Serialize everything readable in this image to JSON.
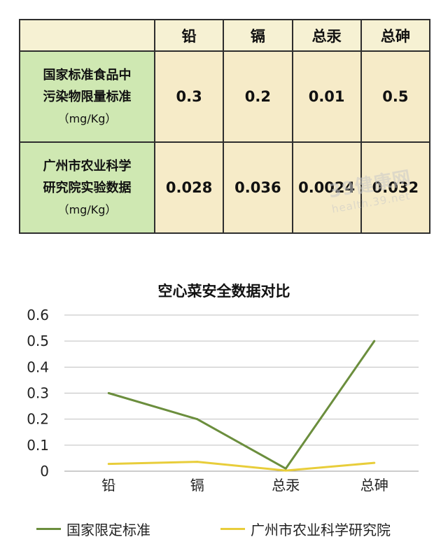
{
  "table": {
    "columns": [
      "铅",
      "镉",
      "总汞",
      "总砷"
    ],
    "rows": [
      {
        "label_line1": "国家标准食品中",
        "label_line2": "污染物限量标准",
        "unit": "（mg/Kg）",
        "values": [
          "0.3",
          "0.2",
          "0.01",
          "0.5"
        ]
      },
      {
        "label_line1": "广州市农业科学",
        "label_line2": "研究院实验数据",
        "unit": "（mg/Kg）",
        "values": [
          "0.028",
          "0.036",
          "0.0024",
          "0.032"
        ]
      }
    ]
  },
  "watermark": {
    "text": "39健康网",
    "sub": "health.39.net"
  },
  "colors": {
    "green": "#6b8e3d",
    "yellow": "#e8cd3a",
    "grid": "#bfbfbf",
    "rowhead_bg": "#cfe8b2",
    "cell_bg": "#f6ebc8"
  },
  "chart_data": {
    "type": "line",
    "title": "空心菜安全数据对比",
    "categories": [
      "铅",
      "镉",
      "总汞",
      "总砷"
    ],
    "ylim": [
      0,
      0.6
    ],
    "yticks": [
      "0.6",
      "0.5",
      "0.4",
      "0.3",
      "0.2",
      "0.1",
      "0"
    ],
    "grid": true,
    "legend_position": "bottom",
    "series": [
      {
        "name": "国家限定标准",
        "color": "#6b8e3d",
        "values": [
          0.3,
          0.2,
          0.01,
          0.5
        ]
      },
      {
        "name": "广州市农业科学研究院",
        "color": "#e8cd3a",
        "values": [
          0.028,
          0.036,
          0.0024,
          0.032
        ]
      }
    ]
  }
}
